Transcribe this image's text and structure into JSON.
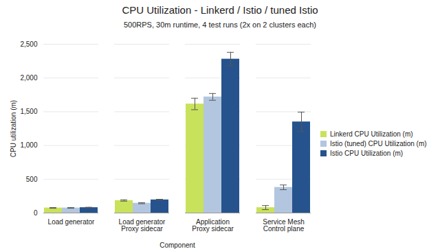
{
  "chart_data": {
    "type": "bar",
    "title": "CPU Utilization - Linkerd / Istio / tuned Istio",
    "subtitle": "500RPS, 30m runtime, 4 test runs (2x on 2 clusters each)",
    "x_label": "Component",
    "y_label": "CPU utilization (m)",
    "categories": [
      "Load generator",
      "Load generator\nProxy sidecar",
      "Application\nProxy sidecar",
      "Service Mesh\nControl plane"
    ],
    "series": [
      {
        "name": "Linkerd CPU Utilization (m)",
        "color": "#c9e25b",
        "values": [
          75,
          185,
          1615,
          80
        ],
        "errors": [
          5,
          10,
          85,
          30
        ]
      },
      {
        "name": "Istio (tuned) CPU Utilization (m)",
        "color": "#b3c6e0",
        "values": [
          75,
          145,
          1720,
          380
        ],
        "errors": [
          5,
          8,
          50,
          35
        ]
      },
      {
        "name": "Istio CPU Utilization (m)",
        "color": "#26538d",
        "values": [
          80,
          195,
          2280,
          1350
        ],
        "errors": [
          5,
          8,
          100,
          145
        ]
      }
    ],
    "ylim": [
      0,
      2500
    ],
    "yticks": [
      0,
      500,
      1000,
      1500,
      2000,
      2500
    ],
    "grid": true,
    "legend": "right"
  }
}
